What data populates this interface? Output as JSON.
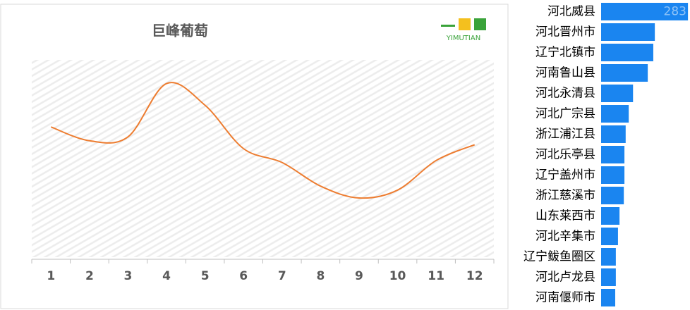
{
  "chart_data": [
    {
      "type": "line",
      "title": "巨峰葡萄",
      "logo_text": "YIMUTIAN",
      "categories": [
        "1",
        "2",
        "3",
        "4",
        "5",
        "6",
        "7",
        "8",
        "9",
        "10",
        "11",
        "12"
      ],
      "values": [
        66,
        59,
        61,
        88,
        77,
        55,
        48,
        36,
        30,
        34,
        49,
        57
      ],
      "color": "#ed7d31",
      "ylim": [
        0,
        100
      ],
      "smooth": true
    },
    {
      "type": "hbar",
      "categories": [
        "河北威县",
        "河北晋州市",
        "辽宁北镇市",
        "河南鲁山县",
        "河北永清县",
        "河北广宗县",
        "浙江浦江县",
        "河北乐亭县",
        "辽宁盖州市",
        "浙江慈溪市",
        "山东莱西市",
        "河北辛集市",
        "辽宁鲅鱼圈区",
        "河北卢龙县",
        "河南偃师市"
      ],
      "values": [
        283,
        175,
        170,
        152,
        104,
        90,
        80,
        76,
        76,
        74,
        60,
        55,
        48,
        48,
        46
      ],
      "value_labels": [
        "283",
        null,
        null,
        null,
        null,
        null,
        null,
        null,
        null,
        null,
        null,
        null,
        null,
        null,
        null
      ],
      "color": "#1a85f0",
      "xlim": [
        0,
        285
      ]
    }
  ]
}
